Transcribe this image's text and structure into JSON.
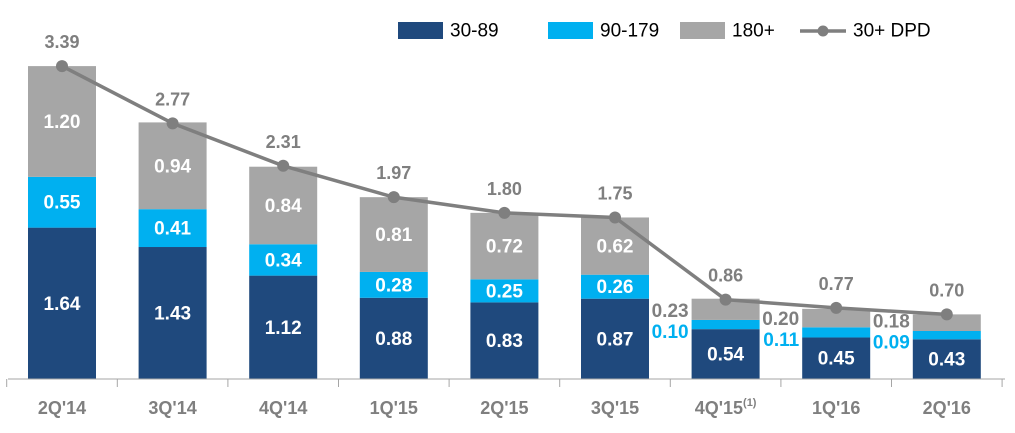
{
  "chart_data": {
    "type": "bar",
    "stacked": true,
    "title": "",
    "xlabel": "",
    "ylabel": "",
    "categories": [
      "2Q'14",
      "3Q'14",
      "4Q'14",
      "1Q'15",
      "2Q'15",
      "3Q'15",
      "4Q'15",
      "1Q'16",
      "2Q'16"
    ],
    "category_footnotes": {
      "6": "(1)"
    },
    "series": [
      {
        "name": "30-89",
        "color": "#1f497d",
        "values": [
          1.64,
          1.43,
          1.12,
          0.88,
          0.83,
          0.87,
          0.54,
          0.45,
          0.43
        ]
      },
      {
        "name": "90-179",
        "color": "#00b0f0",
        "values": [
          0.55,
          0.41,
          0.34,
          0.28,
          0.25,
          0.26,
          0.1,
          0.11,
          0.09
        ]
      },
      {
        "name": "180+",
        "color": "#a6a6a6",
        "values": [
          1.2,
          0.94,
          0.84,
          0.81,
          0.72,
          0.62,
          0.23,
          0.2,
          0.18
        ]
      }
    ],
    "line_series": {
      "name": "30+ DPD",
      "color": "#7f7f7f",
      "values": [
        3.39,
        2.77,
        2.31,
        1.97,
        1.8,
        1.75,
        0.86,
        0.77,
        0.7
      ]
    },
    "ylim": [
      0,
      3.5
    ],
    "grid": false,
    "legend_position": "top-right"
  }
}
